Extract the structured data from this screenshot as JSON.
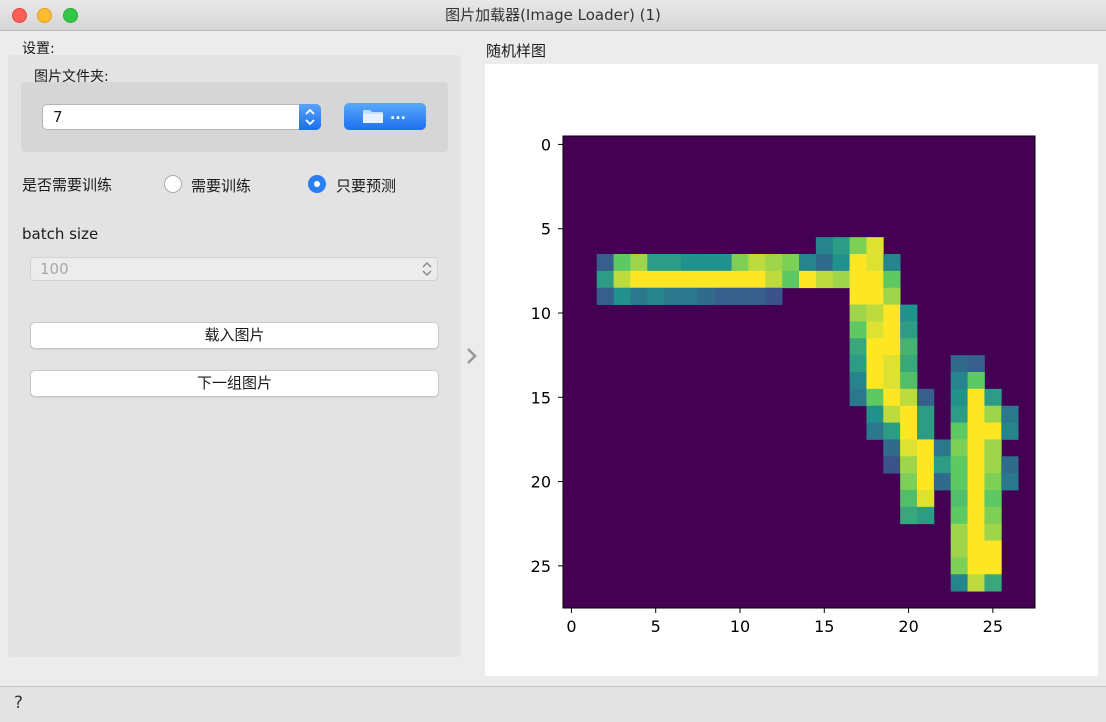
{
  "window": {
    "title": "图片加载器(Image Loader) (1)"
  },
  "settings": {
    "label": "设置:",
    "folder_label": "图片文件夹:",
    "folder_value": "7",
    "browse_label": "...",
    "train_question": "是否需要训练",
    "radio_train": "需要训练",
    "radio_predict": "只要预测",
    "selected_mode": "只要预测",
    "batch_label": "batch size",
    "batch_value": "100",
    "load_button": "载入图片",
    "next_button": "下一组图片"
  },
  "sample": {
    "label": "随机样图"
  },
  "chart_data": {
    "type": "heatmap",
    "title": "",
    "colormap": "viridis",
    "xlim": [
      -0.5,
      27.5
    ],
    "ylim": [
      27.5,
      -0.5
    ],
    "xticks": [
      0,
      5,
      10,
      15,
      20,
      25
    ],
    "yticks": [
      0,
      5,
      10,
      15,
      20,
      25
    ],
    "background": 0,
    "pixels": [
      [
        7,
        2,
        0.3
      ],
      [
        8,
        2,
        0.55
      ],
      [
        9,
        2,
        0.3
      ],
      [
        7,
        3,
        0.75
      ],
      [
        8,
        3,
        0.9
      ],
      [
        9,
        3,
        0.5
      ],
      [
        7,
        4,
        0.85
      ],
      [
        8,
        4,
        1.0
      ],
      [
        9,
        4,
        0.4
      ],
      [
        7,
        5,
        0.55
      ],
      [
        8,
        5,
        1.0
      ],
      [
        9,
        5,
        0.45
      ],
      [
        7,
        6,
        0.55
      ],
      [
        8,
        6,
        1.0
      ],
      [
        9,
        6,
        0.4
      ],
      [
        7,
        7,
        0.5
      ],
      [
        8,
        7,
        1.0
      ],
      [
        9,
        7,
        0.4
      ],
      [
        7,
        8,
        0.5
      ],
      [
        8,
        8,
        1.0
      ],
      [
        9,
        8,
        0.35
      ],
      [
        7,
        9,
        0.5
      ],
      [
        8,
        9,
        1.0
      ],
      [
        9,
        9,
        0.3
      ],
      [
        7,
        10,
        0.8
      ],
      [
        8,
        10,
        1.0
      ],
      [
        9,
        10,
        0.3
      ],
      [
        7,
        11,
        0.9
      ],
      [
        8,
        11,
        1.0
      ],
      [
        9,
        11,
        0.3
      ],
      [
        7,
        12,
        0.85
      ],
      [
        8,
        12,
        0.9
      ],
      [
        9,
        12,
        0.25
      ],
      [
        7,
        13,
        0.8
      ],
      [
        8,
        13,
        0.75
      ],
      [
        7,
        14,
        0.45
      ],
      [
        8,
        14,
        1.0
      ],
      [
        6,
        15,
        0.45
      ],
      [
        7,
        15,
        0.35
      ],
      [
        8,
        15,
        0.9
      ],
      [
        6,
        16,
        0.55
      ],
      [
        7,
        16,
        0.5
      ],
      [
        8,
        16,
        0.85
      ],
      [
        6,
        17,
        0.8
      ],
      [
        7,
        17,
        1.0
      ],
      [
        8,
        17,
        1.0
      ],
      [
        9,
        17,
        1.0
      ],
      [
        10,
        17,
        0.85
      ],
      [
        11,
        17,
        0.75
      ],
      [
        12,
        17,
        0.6
      ],
      [
        13,
        17,
        0.55
      ],
      [
        14,
        17,
        0.45
      ],
      [
        15,
        17,
        0.4
      ],
      [
        6,
        18,
        0.95
      ],
      [
        7,
        18,
        0.95
      ],
      [
        8,
        18,
        1.0
      ],
      [
        9,
        18,
        1.0
      ],
      [
        10,
        18,
        0.9
      ],
      [
        11,
        18,
        0.95
      ],
      [
        12,
        18,
        1.0
      ],
      [
        13,
        18,
        1.0
      ],
      [
        14,
        18,
        1.0
      ],
      [
        15,
        18,
        0.75
      ],
      [
        16,
        18,
        0.5
      ],
      [
        17,
        18,
        0.4
      ],
      [
        7,
        19,
        0.45
      ],
      [
        8,
        19,
        0.75
      ],
      [
        9,
        19,
        0.85
      ],
      [
        10,
        19,
        1.0
      ],
      [
        11,
        19,
        1.0
      ],
      [
        12,
        19,
        1.0
      ],
      [
        13,
        19,
        0.95
      ],
      [
        14,
        19,
        0.95
      ],
      [
        15,
        19,
        1.0
      ],
      [
        16,
        19,
        0.9
      ],
      [
        17,
        19,
        0.55
      ],
      [
        18,
        19,
        0.35
      ],
      [
        19,
        19,
        0.25
      ],
      [
        10,
        20,
        0.5
      ],
      [
        11,
        20,
        0.55
      ],
      [
        12,
        20,
        0.65
      ],
      [
        13,
        20,
        0.6
      ],
      [
        14,
        20,
        0.7
      ],
      [
        15,
        20,
        0.9
      ],
      [
        16,
        20,
        1.0
      ],
      [
        17,
        20,
        1.0
      ],
      [
        18,
        20,
        0.95
      ],
      [
        19,
        20,
        0.85
      ],
      [
        20,
        20,
        0.8
      ],
      [
        21,
        20,
        0.7
      ],
      [
        22,
        20,
        0.6
      ],
      [
        15,
        21,
        0.3
      ],
      [
        16,
        21,
        0.55
      ],
      [
        17,
        21,
        0.55
      ],
      [
        18,
        21,
        1.0
      ],
      [
        19,
        21,
        1.0
      ],
      [
        20,
        21,
        1.0
      ],
      [
        21,
        21,
        0.95
      ],
      [
        22,
        21,
        0.55
      ],
      [
        18,
        22,
        0.4
      ],
      [
        19,
        22,
        0.55
      ],
      [
        20,
        22,
        0.35
      ],
      [
        13,
        23,
        0.35
      ],
      [
        14,
        23,
        0.45
      ],
      [
        15,
        23,
        0.5
      ],
      [
        16,
        23,
        0.55
      ],
      [
        17,
        23,
        0.75
      ],
      [
        18,
        23,
        0.8
      ],
      [
        19,
        23,
        0.75
      ],
      [
        20,
        23,
        0.75
      ],
      [
        21,
        23,
        0.7
      ],
      [
        22,
        23,
        0.75
      ],
      [
        23,
        23,
        0.85
      ],
      [
        24,
        23,
        0.85
      ],
      [
        25,
        23,
        0.8
      ],
      [
        26,
        23,
        0.45
      ],
      [
        13,
        24,
        0.3
      ],
      [
        14,
        24,
        0.75
      ],
      [
        15,
        24,
        1.0
      ],
      [
        16,
        24,
        1.0
      ],
      [
        17,
        24,
        1.0
      ],
      [
        18,
        24,
        1.0
      ],
      [
        19,
        24,
        1.0
      ],
      [
        20,
        24,
        1.0
      ],
      [
        21,
        24,
        1.0
      ],
      [
        22,
        24,
        1.0
      ],
      [
        23,
        24,
        1.0
      ],
      [
        24,
        24,
        1.0
      ],
      [
        25,
        24,
        1.0
      ],
      [
        26,
        24,
        0.9
      ],
      [
        15,
        25,
        0.55
      ],
      [
        16,
        25,
        0.85
      ],
      [
        17,
        25,
        1.0
      ],
      [
        18,
        25,
        0.85
      ],
      [
        19,
        25,
        0.85
      ],
      [
        20,
        25,
        0.8
      ],
      [
        21,
        25,
        0.75
      ],
      [
        22,
        25,
        0.8
      ],
      [
        23,
        25,
        0.85
      ],
      [
        24,
        25,
        1.0
      ],
      [
        25,
        25,
        1.0
      ],
      [
        26,
        25,
        0.6
      ],
      [
        16,
        26,
        0.4
      ],
      [
        17,
        26,
        0.45
      ],
      [
        19,
        26,
        0.35
      ],
      [
        20,
        26,
        0.4
      ]
    ]
  }
}
